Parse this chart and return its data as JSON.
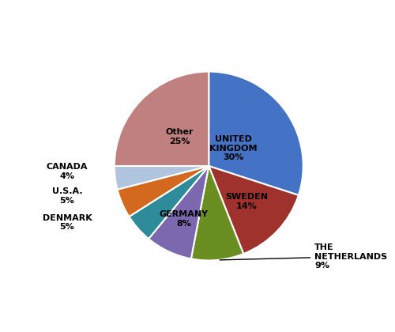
{
  "label_names": [
    "UNITED\nKINGDOM",
    "SWEDEN",
    "THE\nNETHERLANDS",
    "GERMANY",
    "DENMARK",
    "U.S.A.",
    "CANADA",
    "Other"
  ],
  "percentages": [
    "30%",
    "14%",
    "9%",
    "8%",
    "5%",
    "5%",
    "4%",
    "25%"
  ],
  "values": [
    30,
    14,
    9,
    8,
    5,
    5,
    4,
    25
  ],
  "colors": [
    "#4472C4",
    "#A0322D",
    "#6B8E23",
    "#7B68AE",
    "#2E8B9A",
    "#D2691E",
    "#B0C4DE",
    "#C08080"
  ],
  "startangle": 90,
  "background_color": "#ffffff"
}
